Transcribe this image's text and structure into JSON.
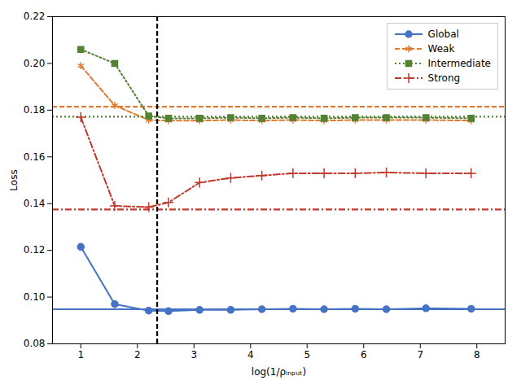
{
  "chart_data": {
    "type": "line",
    "xlabel": "log(1/ρᵢₙₚᵤₜ)",
    "ylabel": "Loss",
    "x": [
      1,
      1.6,
      2.2,
      2.55,
      3.1,
      3.65,
      4.2,
      4.75,
      5.3,
      5.85,
      6.4,
      7.1,
      7.9
    ],
    "series": [
      {
        "name": "Global",
        "color": "#4472c4",
        "marker": "circle",
        "line_style": "solid",
        "reference_line": 0.0948,
        "values": [
          0.1215,
          0.097,
          0.0942,
          0.094,
          0.0945,
          0.0945,
          0.0948,
          0.095,
          0.0948,
          0.095,
          0.0948,
          0.0952,
          0.095
        ]
      },
      {
        "name": "Weak",
        "color": "#e07b30",
        "marker": "asterisk",
        "line_style": "dashed",
        "reference_line": 0.1815,
        "values": [
          0.199,
          0.182,
          0.1758,
          0.1755,
          0.1755,
          0.1758,
          0.1755,
          0.1758,
          0.1755,
          0.1758,
          0.1758,
          0.1758,
          0.1755
        ]
      },
      {
        "name": "Intermediate",
        "color": "#548235",
        "marker": "square",
        "line_style": "dotted",
        "reference_line": 0.1772,
        "values": [
          0.206,
          0.2,
          0.1775,
          0.1765,
          0.1765,
          0.1768,
          0.1765,
          0.1768,
          0.1765,
          0.1768,
          0.1768,
          0.1768,
          0.1765
        ]
      },
      {
        "name": "Strong",
        "color": "#c0392b",
        "marker": "plus",
        "line_style": "dashdot",
        "reference_line": 0.1375,
        "values": [
          0.177,
          0.139,
          0.1385,
          0.1405,
          0.149,
          0.151,
          0.152,
          0.153,
          0.153,
          0.153,
          0.1533,
          0.153,
          0.153
        ]
      }
    ],
    "vline": {
      "value": 2.35,
      "color": "black",
      "line_style": "dashed"
    },
    "xlim": [
      0.5,
      8.5
    ],
    "ylim": [
      0.08,
      0.22
    ],
    "xticks": [
      1,
      2,
      3,
      4,
      5,
      6,
      7,
      8
    ],
    "yticks": [
      0.08,
      {
        "value": 0.1,
        "label": "0.10"
      },
      0.12,
      0.14,
      0.16,
      0.18,
      {
        "value": 0.2,
        "label": "0.20"
      },
      0.22
    ],
    "grid": false,
    "legend": "upper right"
  }
}
